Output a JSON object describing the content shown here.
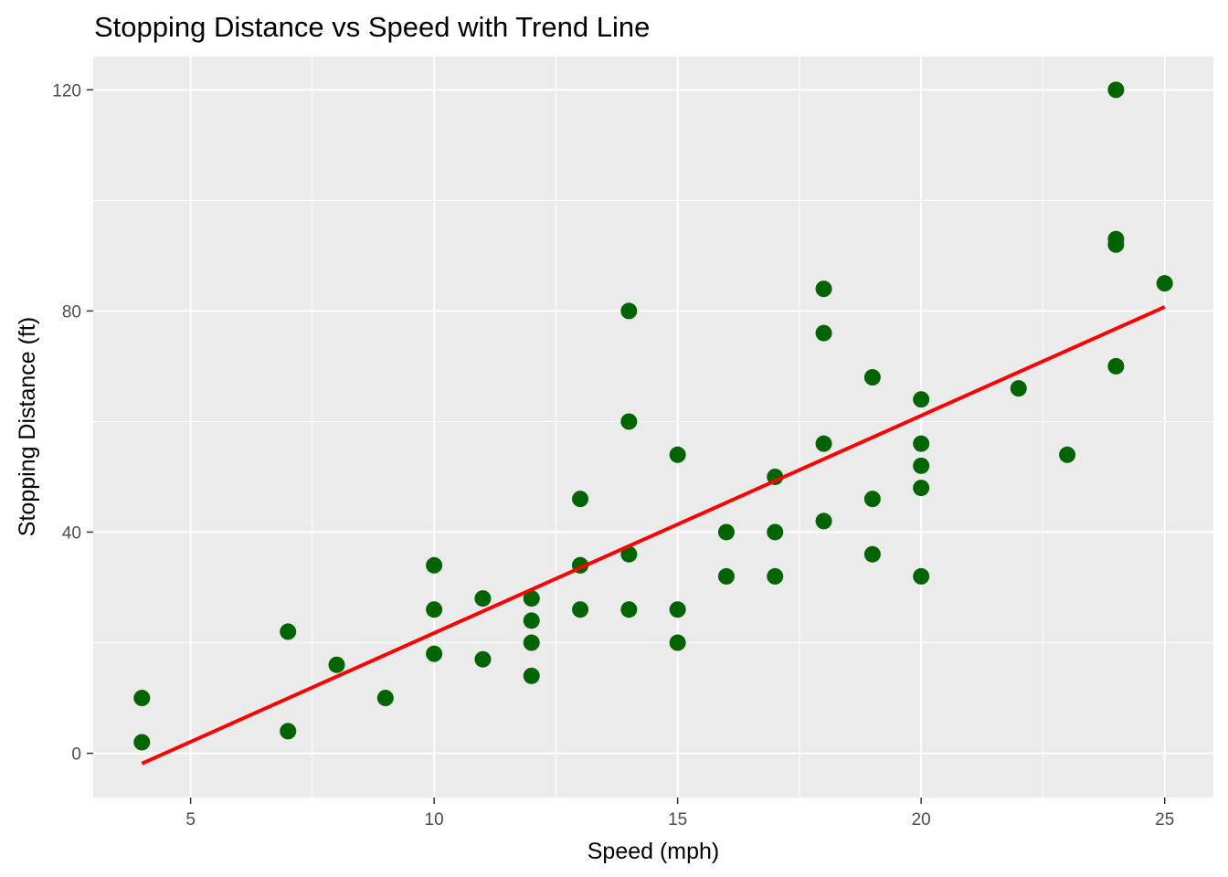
{
  "chart_data": {
    "type": "scatter",
    "title": "Stopping Distance vs Speed with Trend Line",
    "xlabel": "Speed (mph)",
    "ylabel": "Stopping Distance (ft)",
    "xlim": [
      3,
      26
    ],
    "ylim": [
      -8,
      126
    ],
    "x_ticks": [
      5,
      10,
      15,
      20,
      25
    ],
    "y_ticks": [
      0,
      40,
      80,
      120
    ],
    "x_tick_labels": [
      "5",
      "10",
      "15",
      "20",
      "25"
    ],
    "y_tick_labels": [
      "0",
      "40",
      "80",
      "120"
    ],
    "grid": true,
    "legend": "none",
    "series": [
      {
        "name": "observations",
        "kind": "points",
        "color": "#006400",
        "points": [
          [
            4,
            2
          ],
          [
            4,
            10
          ],
          [
            7,
            4
          ],
          [
            7,
            22
          ],
          [
            8,
            16
          ],
          [
            9,
            10
          ],
          [
            10,
            18
          ],
          [
            10,
            26
          ],
          [
            10,
            34
          ],
          [
            11,
            17
          ],
          [
            11,
            28
          ],
          [
            12,
            14
          ],
          [
            12,
            20
          ],
          [
            12,
            24
          ],
          [
            12,
            28
          ],
          [
            13,
            26
          ],
          [
            13,
            34
          ],
          [
            13,
            34
          ],
          [
            13,
            46
          ],
          [
            14,
            26
          ],
          [
            14,
            36
          ],
          [
            14,
            60
          ],
          [
            14,
            80
          ],
          [
            15,
            20
          ],
          [
            15,
            26
          ],
          [
            15,
            54
          ],
          [
            16,
            32
          ],
          [
            16,
            40
          ],
          [
            17,
            32
          ],
          [
            17,
            40
          ],
          [
            17,
            50
          ],
          [
            18,
            42
          ],
          [
            18,
            56
          ],
          [
            18,
            76
          ],
          [
            18,
            84
          ],
          [
            19,
            36
          ],
          [
            19,
            46
          ],
          [
            19,
            68
          ],
          [
            20,
            32
          ],
          [
            20,
            48
          ],
          [
            20,
            52
          ],
          [
            20,
            56
          ],
          [
            20,
            64
          ],
          [
            22,
            66
          ],
          [
            23,
            54
          ],
          [
            24,
            70
          ],
          [
            24,
            92
          ],
          [
            24,
            93
          ],
          [
            24,
            120
          ],
          [
            25,
            85
          ]
        ]
      },
      {
        "name": "trend line",
        "kind": "line",
        "color": "#ff0000",
        "x": [
          4,
          25
        ],
        "y": [
          -1.85,
          80.73
        ]
      }
    ]
  }
}
